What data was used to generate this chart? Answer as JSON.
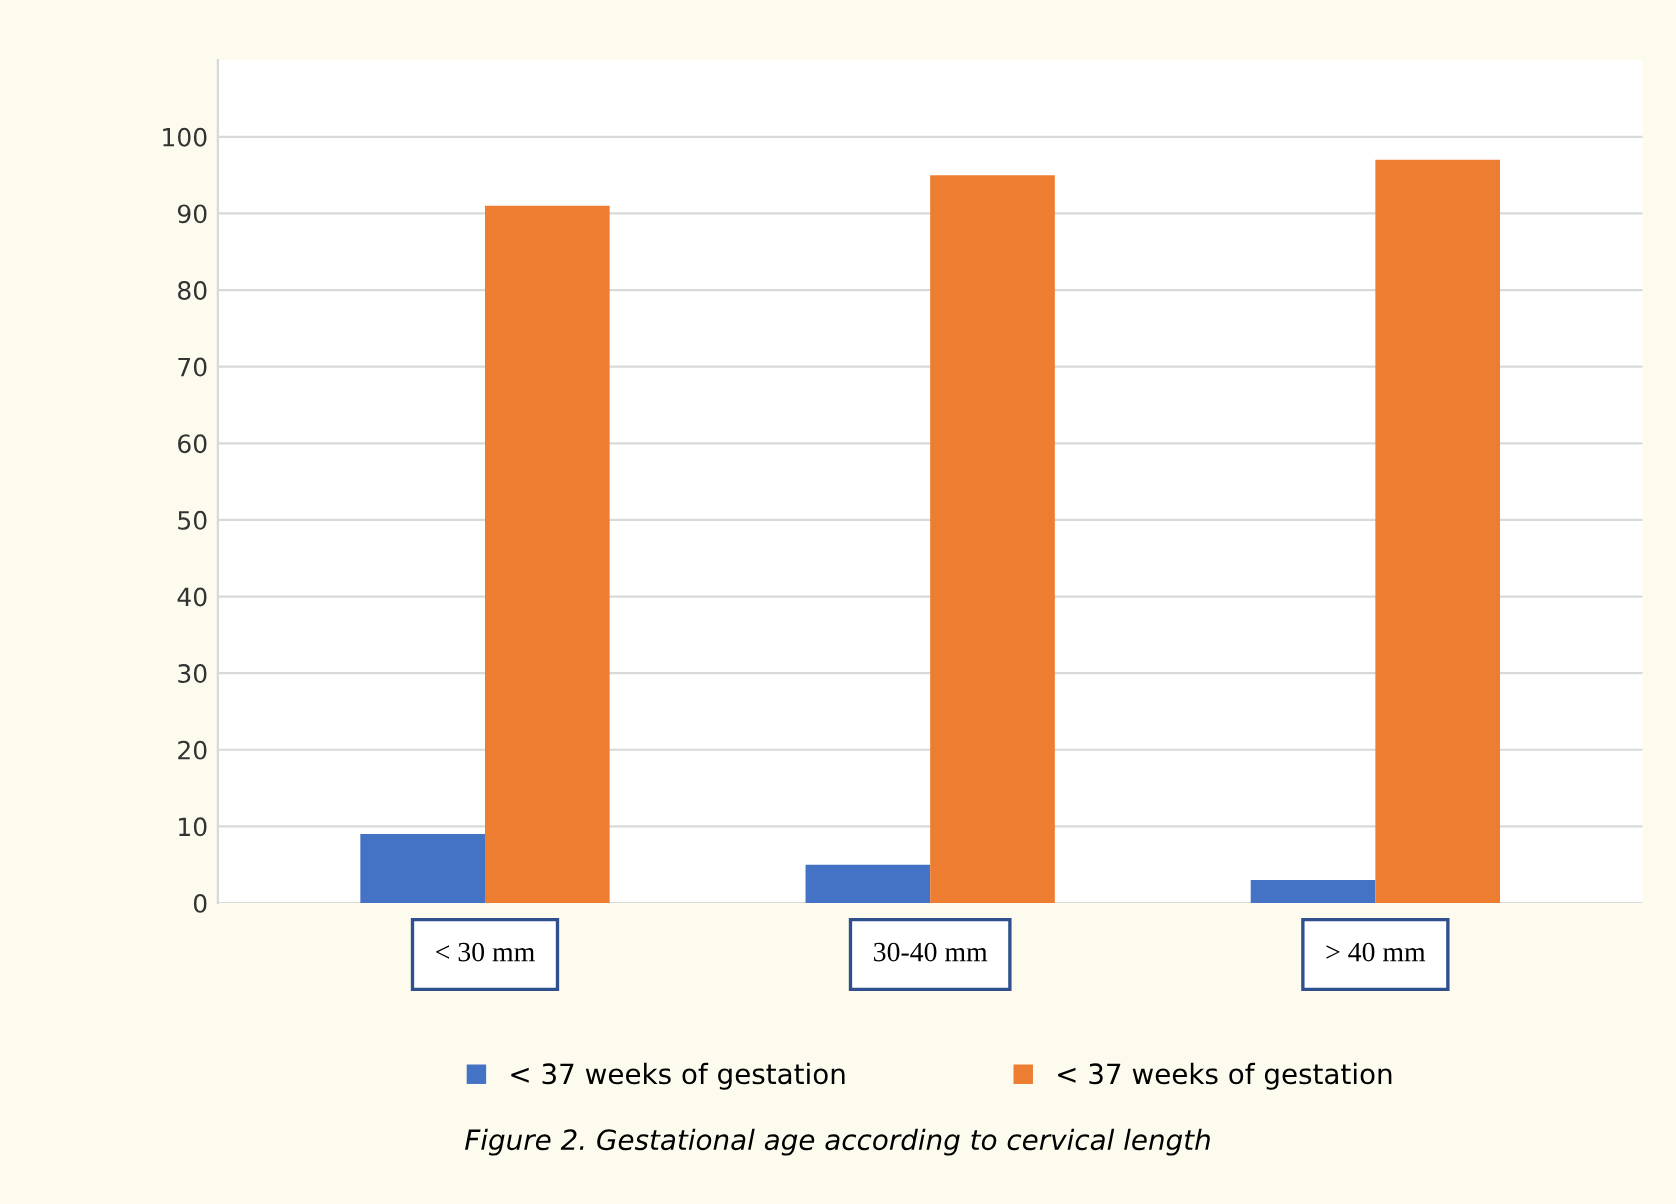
{
  "chart_data": {
    "type": "bar",
    "title": "Figure 2. Gestational age according to cervical length",
    "categories": [
      "< 30 mm",
      "30-40 mm",
      "> 40 mm"
    ],
    "series": [
      {
        "name": "< 37 weeks of gestation",
        "color": "#4472c4",
        "values": [
          9,
          5,
          3
        ]
      },
      {
        "name": "< 37 weeks of gestation",
        "color": "#ed7d31",
        "values": [
          91,
          95,
          97
        ]
      }
    ],
    "ylim": [
      0,
      110
    ],
    "yticks": [
      0,
      10,
      20,
      30,
      40,
      50,
      60,
      70,
      80,
      90,
      100
    ],
    "grid": "y",
    "legend": "bottom"
  }
}
